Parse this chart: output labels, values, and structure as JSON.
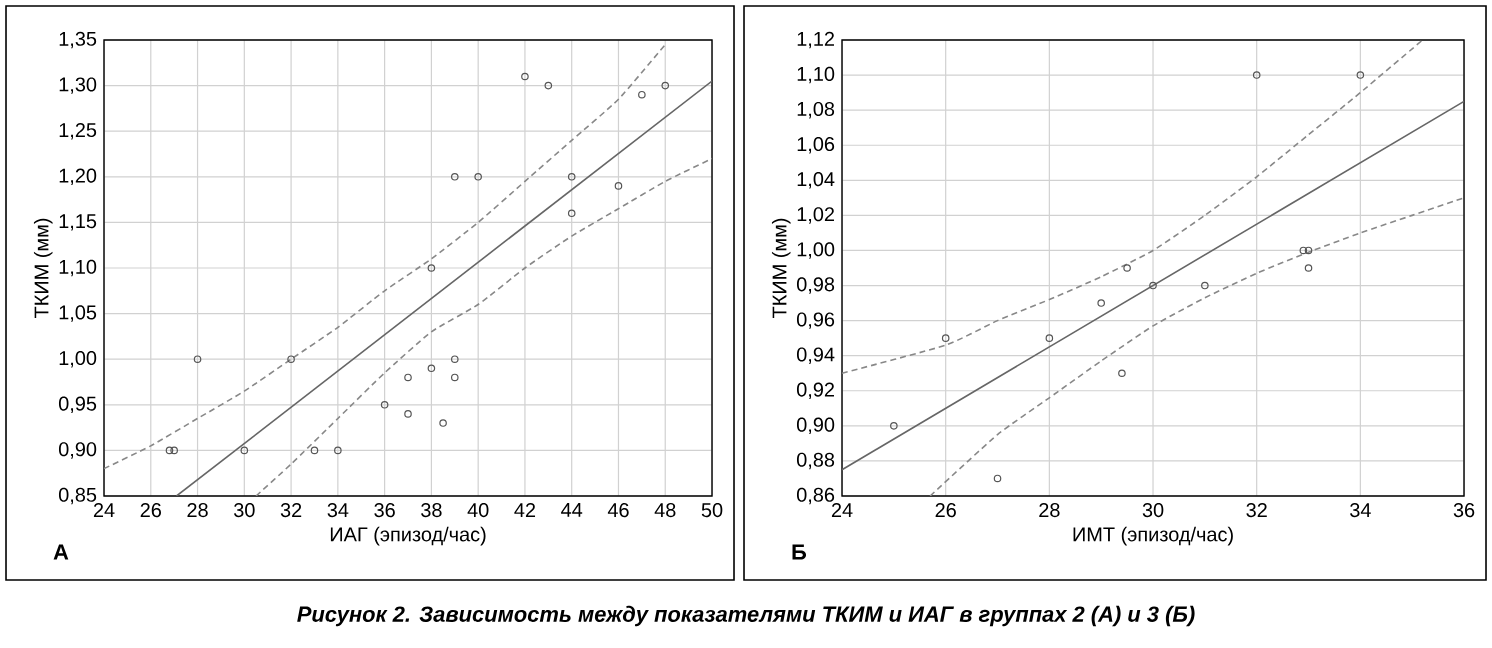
{
  "chart_data": [
    {
      "type": "scatter",
      "xlabel": "ИАГ (эпизод/час)",
      "ylabel": "ТКИМ (мм)",
      "annotations": [
        "А",
        "Рисунок 2. Зависимость между показателями ТКИМ и ИАГ в группах 2 (А) и 3 (Б)"
      ],
      "xlim": [
        24,
        50
      ],
      "ylim": [
        0.85,
        1.35
      ],
      "xticks": [
        24,
        26,
        28,
        30,
        32,
        34,
        36,
        38,
        40,
        42,
        44,
        46,
        48,
        50
      ],
      "yticks": [
        {
          "value": 0.85,
          "label": "0,85"
        },
        {
          "value": 0.9,
          "label": "0,90"
        },
        {
          "value": 0.95,
          "label": "0,95"
        },
        {
          "value": 1.0,
          "label": "1,00"
        },
        {
          "value": 1.05,
          "label": "1,05"
        },
        {
          "value": 1.1,
          "label": "1,10"
        },
        {
          "value": 1.15,
          "label": "1,15"
        },
        {
          "value": 1.2,
          "label": "1,20"
        },
        {
          "value": 1.25,
          "label": "1,25"
        },
        {
          "value": 1.3,
          "label": "1,30"
        },
        {
          "value": 1.35,
          "label": "1,35"
        }
      ],
      "grid": true,
      "series": [
        {
          "marker": "circle",
          "color": "#555555",
          "x": [
            26.8,
            27,
            28,
            30,
            32,
            33,
            34,
            36,
            37,
            37,
            38,
            38,
            38.5,
            39,
            39,
            39,
            40,
            42,
            43,
            44,
            44,
            46,
            47,
            48
          ],
          "values": [
            0.9,
            0.9,
            1.0,
            0.9,
            1.0,
            0.9,
            0.9,
            0.95,
            0.98,
            0.94,
            0.99,
            1.1,
            0.93,
            1.0,
            0.98,
            1.2,
            1.2,
            1.31,
            1.3,
            1.2,
            1.16,
            1.19,
            1.29,
            1.3
          ]
        },
        {
          "type": "line",
          "marker": "none",
          "line_style": "solid",
          "color": "#666666",
          "x": [
            27.1,
            50
          ],
          "values": [
            0.85,
            1.305
          ]
        },
        {
          "type": "line",
          "marker": "none",
          "line_style": "dashed",
          "color": "#888888",
          "x": [
            24,
            26,
            28,
            30,
            32,
            34,
            36,
            38,
            40,
            42,
            44,
            46,
            48
          ],
          "values": [
            0.88,
            0.905,
            0.935,
            0.965,
            1.0,
            1.035,
            1.075,
            1.11,
            1.15,
            1.195,
            1.24,
            1.285,
            1.345
          ]
        },
        {
          "type": "line",
          "marker": "none",
          "line_style": "dashed",
          "color": "#888888",
          "x": [
            30.5,
            32,
            34,
            36,
            38,
            40,
            42,
            44,
            46,
            48,
            50
          ],
          "values": [
            0.85,
            0.885,
            0.935,
            0.985,
            1.03,
            1.06,
            1.1,
            1.135,
            1.165,
            1.195,
            1.22
          ]
        }
      ]
    },
    {
      "type": "scatter",
      "xlabel": "ИМТ (эпизод/час)",
      "ylabel": "ТКИМ (мм)",
      "annotations": [
        "Б"
      ],
      "xlim": [
        24,
        36
      ],
      "ylim": [
        0.86,
        1.12
      ],
      "xticks": [
        24,
        26,
        28,
        30,
        32,
        34,
        36
      ],
      "yticks": [
        {
          "value": 0.86,
          "label": "0,86"
        },
        {
          "value": 0.88,
          "label": "0,88"
        },
        {
          "value": 0.9,
          "label": "0,90"
        },
        {
          "value": 0.92,
          "label": "0,92"
        },
        {
          "value": 0.94,
          "label": "0,94"
        },
        {
          "value": 0.96,
          "label": "0,96"
        },
        {
          "value": 0.98,
          "label": "0,98"
        },
        {
          "value": 1.0,
          "label": "1,00"
        },
        {
          "value": 1.02,
          "label": "1,02"
        },
        {
          "value": 1.04,
          "label": "1,04"
        },
        {
          "value": 1.06,
          "label": "1,06"
        },
        {
          "value": 1.08,
          "label": "1,08"
        },
        {
          "value": 1.1,
          "label": "1,10"
        },
        {
          "value": 1.12,
          "label": "1,12"
        }
      ],
      "grid": true,
      "series": [
        {
          "marker": "circle",
          "color": "#555555",
          "x": [
            25,
            26,
            27,
            28,
            29,
            29.4,
            29.5,
            30,
            31,
            32,
            32.9,
            33,
            33,
            34
          ],
          "values": [
            0.9,
            0.95,
            0.87,
            0.95,
            0.97,
            0.93,
            0.99,
            0.98,
            0.98,
            1.1,
            1.0,
            1.0,
            0.99,
            1.1
          ]
        },
        {
          "type": "line",
          "marker": "none",
          "line_style": "solid",
          "color": "#666666",
          "x": [
            24,
            36
          ],
          "values": [
            0.875,
            1.085
          ]
        },
        {
          "type": "line",
          "marker": "none",
          "line_style": "dashed",
          "color": "#888888",
          "x": [
            24,
            26,
            27,
            28,
            29,
            30,
            31,
            32,
            33,
            34,
            35.2
          ],
          "values": [
            0.93,
            0.946,
            0.96,
            0.972,
            0.985,
            1.0,
            1.02,
            1.042,
            1.066,
            1.09,
            1.12
          ]
        },
        {
          "type": "line",
          "marker": "none",
          "line_style": "dashed",
          "color": "#888888",
          "x": [
            25.7,
            27,
            28,
            29,
            30,
            31,
            32,
            33,
            34,
            35,
            36
          ],
          "values": [
            0.86,
            0.895,
            0.916,
            0.937,
            0.957,
            0.973,
            0.987,
            0.999,
            1.01,
            1.02,
            1.03
          ]
        }
      ]
    }
  ]
}
